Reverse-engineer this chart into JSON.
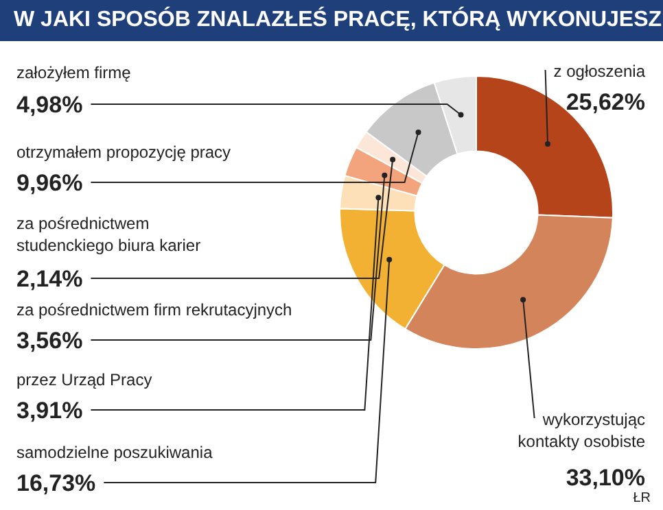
{
  "chart_data": {
    "type": "donut",
    "title": "W JAKI SPOSÓB ZNALAZŁEŚ PRACĘ, KTÓRĄ WYKONUJESZ",
    "categories": [
      "z ogłoszenia",
      "wykorzystując\nkontakty osobiste",
      "samodzielne poszukiwania",
      "przez Urząd Pracy",
      "za pośrednictwem firm rekrutacyjnych",
      "za pośrednictwem\nstudenckiego biura karier",
      "otrzymałem propozycję pracy",
      "założyłem firmę"
    ],
    "values": [
      25.62,
      33.1,
      16.73,
      3.91,
      3.56,
      2.14,
      9.96,
      4.98
    ],
    "colors": [
      "#b5441a",
      "#d4845a",
      "#f2b133",
      "#fde0b8",
      "#f4a47c",
      "#fbe6d8",
      "#c8c8c8",
      "#e6e6e6"
    ],
    "value_labels": [
      "25,62%",
      "33,10%",
      "16,73%",
      "3,91%",
      "3,56%",
      "2,14%",
      "9,96%",
      "4,98%"
    ],
    "annotations": [
      "ŁR"
    ]
  }
}
